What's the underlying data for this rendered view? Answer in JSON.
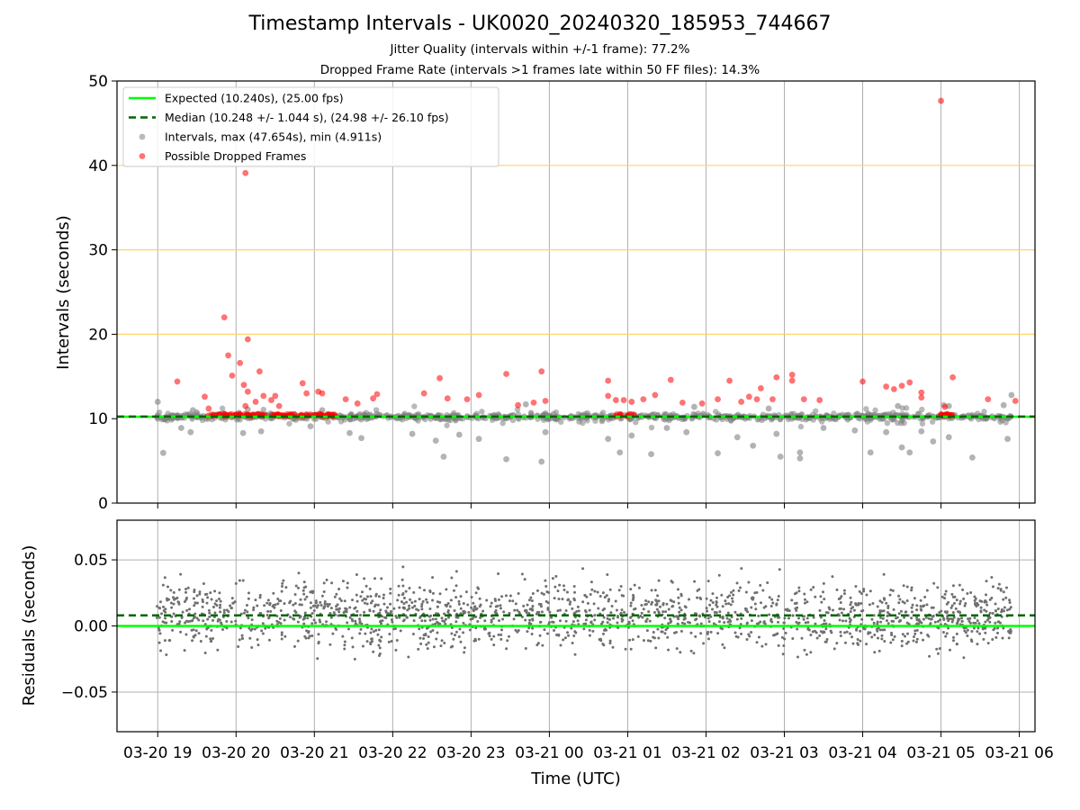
{
  "chart_data": {
    "title": "Timestamp Intervals - UK0020_20240320_185953_744667",
    "subtitles": [
      "Jitter Quality (intervals within +/-1 frame): 77.2%",
      "Dropped Frame Rate (intervals >1 frames late within 50 FF files): 14.3%"
    ],
    "xlabel": "Time (UTC)",
    "x_ticks": [
      "03-20 19",
      "03-20 20",
      "03-20 21",
      "03-20 22",
      "03-20 23",
      "03-21 00",
      "03-21 01",
      "03-21 02",
      "03-21 03",
      "03-21 04",
      "03-21 05",
      "03-21 06"
    ],
    "x_range_hours": [
      18.48,
      30.2
    ],
    "panels": [
      {
        "type": "scatter",
        "ylabel": "Intervals (seconds)",
        "ylim": [
          0,
          50
        ],
        "y_ticks": [
          "0",
          "10",
          "20",
          "30",
          "40",
          "50"
        ],
        "grid": true,
        "threshold_lines": [
          20,
          30,
          40
        ],
        "legend_position": "top-left",
        "legend": [
          {
            "label": "Expected (10.240s), (25.00 fps)",
            "style": "solid",
            "color": "#00ff00"
          },
          {
            "label": "Median (10.248 +/- 1.044 s), (24.98 +/- 26.10 fps)",
            "style": "dashed",
            "color": "#006400"
          },
          {
            "label": "Intervals, max (47.654s), min (4.911s)",
            "style": "marker",
            "color": "#808080"
          },
          {
            "label": "Possible Dropped Frames",
            "style": "marker",
            "color": "#ff0000"
          }
        ],
        "expected_value": 10.24,
        "median_value": 10.248,
        "series": [
          {
            "name": "Intervals, max (47.654s), min (4.911s)",
            "color": "#808080",
            "points": [
              [
                19.07,
                5.95
              ],
              [
                19.3,
                8.9
              ],
              [
                19.42,
                8.4
              ],
              [
                20.09,
                8.3
              ],
              [
                20.32,
                8.5
              ],
              [
                20.95,
                9.1
              ],
              [
                21.45,
                8.3
              ],
              [
                21.6,
                7.7
              ],
              [
                22.25,
                8.2
              ],
              [
                22.55,
                7.4
              ],
              [
                22.65,
                5.5
              ],
              [
                22.85,
                8.1
              ],
              [
                23.1,
                7.6
              ],
              [
                23.45,
                5.2
              ],
              [
                23.9,
                4.91
              ],
              [
                23.95,
                8.4
              ],
              [
                24.75,
                7.6
              ],
              [
                24.9,
                6.0
              ],
              [
                25.05,
                8.0
              ],
              [
                25.3,
                5.8
              ],
              [
                25.5,
                8.9
              ],
              [
                25.75,
                8.4
              ],
              [
                26.15,
                5.9
              ],
              [
                26.4,
                7.8
              ],
              [
                26.6,
                6.8
              ],
              [
                26.9,
                8.2
              ],
              [
                26.95,
                5.5
              ],
              [
                27.2,
                5.3
              ],
              [
                27.2,
                6.0
              ],
              [
                27.5,
                8.9
              ],
              [
                27.9,
                8.6
              ],
              [
                28.1,
                6.0
              ],
              [
                28.3,
                8.4
              ],
              [
                28.5,
                6.6
              ],
              [
                28.6,
                6.0
              ],
              [
                28.75,
                8.5
              ],
              [
                28.9,
                7.3
              ],
              [
                29.1,
                7.8
              ],
              [
                29.4,
                5.4
              ],
              [
                29.85,
                7.6
              ],
              [
                29.9,
                12.8
              ],
              [
                19.0,
                12.0
              ],
              [
                19.45,
                11.0
              ],
              [
                20.15,
                11.1
              ],
              [
                21.1,
                11.0
              ],
              [
                23.7,
                11.7
              ],
              [
                25.85,
                11.4
              ],
              [
                26.8,
                11.2
              ],
              [
                28.45,
                11.5
              ],
              [
                29.1,
                11.5
              ],
              [
                29.8,
                11.6
              ]
            ]
          },
          {
            "name": "Possible Dropped Frames",
            "color": "#ff0000",
            "points": [
              [
                19.25,
                14.4
              ],
              [
                19.6,
                12.6
              ],
              [
                19.65,
                11.2
              ],
              [
                19.85,
                22.0
              ],
              [
                19.9,
                17.5
              ],
              [
                19.95,
                15.1
              ],
              [
                20.05,
                16.6
              ],
              [
                20.1,
                14.0
              ],
              [
                20.15,
                13.2
              ],
              [
                20.12,
                11.5
              ],
              [
                20.12,
                39.1
              ],
              [
                20.15,
                19.4
              ],
              [
                20.25,
                12.0
              ],
              [
                20.3,
                15.6
              ],
              [
                20.35,
                12.7
              ],
              [
                20.45,
                12.2
              ],
              [
                20.5,
                12.7
              ],
              [
                20.85,
                14.2
              ],
              [
                20.9,
                13.0
              ],
              [
                20.55,
                11.5
              ],
              [
                21.05,
                13.2
              ],
              [
                21.1,
                13.0
              ],
              [
                21.4,
                12.3
              ],
              [
                21.55,
                11.8
              ],
              [
                21.75,
                12.4
              ],
              [
                21.8,
                12.9
              ],
              [
                22.4,
                13.0
              ],
              [
                22.6,
                14.8
              ],
              [
                22.7,
                12.4
              ],
              [
                22.95,
                12.3
              ],
              [
                23.1,
                12.8
              ],
              [
                23.45,
                15.3
              ],
              [
                23.6,
                11.6
              ],
              [
                23.8,
                11.9
              ],
              [
                23.9,
                15.6
              ],
              [
                23.95,
                12.1
              ],
              [
                24.75,
                14.5
              ],
              [
                24.75,
                12.7
              ],
              [
                24.85,
                12.2
              ],
              [
                24.95,
                12.2
              ],
              [
                25.05,
                12.0
              ],
              [
                25.2,
                12.3
              ],
              [
                25.35,
                12.8
              ],
              [
                25.55,
                14.6
              ],
              [
                25.7,
                11.9
              ],
              [
                25.95,
                11.8
              ],
              [
                26.15,
                12.3
              ],
              [
                26.3,
                14.5
              ],
              [
                26.45,
                12.0
              ],
              [
                26.55,
                12.6
              ],
              [
                26.65,
                12.3
              ],
              [
                26.7,
                13.6
              ],
              [
                26.85,
                12.3
              ],
              [
                26.9,
                14.9
              ],
              [
                27.1,
                14.5
              ],
              [
                27.1,
                15.2
              ],
              [
                27.25,
                12.3
              ],
              [
                27.45,
                12.2
              ],
              [
                28.0,
                14.4
              ],
              [
                28.3,
                13.8
              ],
              [
                28.4,
                13.5
              ],
              [
                28.5,
                13.9
              ],
              [
                28.6,
                14.3
              ],
              [
                28.75,
                12.5
              ],
              [
                28.75,
                13.1
              ],
              [
                29.0,
                47.65
              ],
              [
                29.05,
                11.4
              ],
              [
                29.15,
                14.9
              ],
              [
                29.6,
                12.3
              ],
              [
                29.95,
                12.1
              ]
            ]
          }
        ]
      },
      {
        "type": "scatter",
        "ylabel": "Residuals (seconds)",
        "ylim": [
          -0.08,
          0.08
        ],
        "y_ticks": [
          "−0.05",
          "0.00",
          "0.05"
        ],
        "grid": true,
        "expected_value": 0.0,
        "median_value": 0.008,
        "series": [
          {
            "name": "Residuals",
            "color": "#808080",
            "points": []
          }
        ]
      }
    ]
  }
}
